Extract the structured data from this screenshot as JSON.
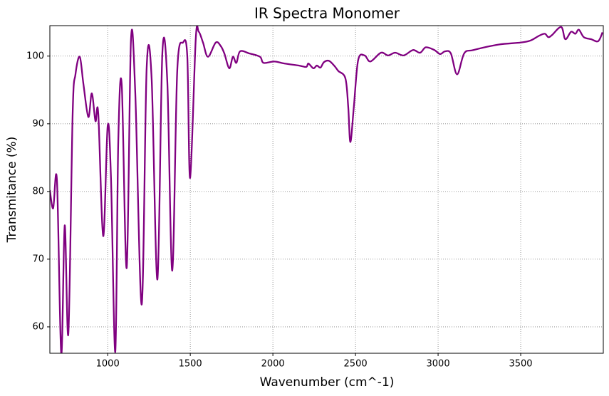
{
  "chart_data": {
    "type": "line",
    "title": "IR Spectra Monomer",
    "x_label": "Wavenumber (cm^-1)",
    "y_label": "Transmitance (%)",
    "x": [
      650,
      670,
      693,
      719,
      740,
      762,
      788,
      805,
      831,
      853,
      883,
      904,
      926,
      943,
      973,
      1000,
      1020,
      1046,
      1064,
      1085,
      1115,
      1141,
      1167,
      1206,
      1236,
      1266,
      1301,
      1331,
      1361,
      1391,
      1421,
      1456,
      1482,
      1499,
      1533,
      1551,
      1577,
      1607,
      1654,
      1684,
      1706,
      1736,
      1758,
      1779,
      1801,
      1857,
      1922,
      1943,
      2008,
      2072,
      2159,
      2202,
      2215,
      2245,
      2266,
      2288,
      2309,
      2340,
      2374,
      2396,
      2439,
      2456,
      2469,
      2490,
      2516,
      2555,
      2590,
      2654,
      2697,
      2740,
      2792,
      2848,
      2891,
      2926,
      2977,
      3012,
      3042,
      3077,
      3115,
      3158,
      3214,
      3365,
      3499,
      3559,
      3611,
      3646,
      3667,
      3689,
      3745,
      3770,
      3805,
      3831,
      3852,
      3882,
      3926,
      3969,
      3995
    ],
    "series": [
      {
        "name": "IR Spectra Monomer",
        "color": "#800080",
        "values": [
          80.2,
          77.5,
          81.6,
          56,
          75,
          59,
          91.5,
          97.3,
          99.9,
          95.9,
          91,
          94.5,
          90.4,
          91.5,
          73.4,
          89.7,
          82,
          56.3,
          87.3,
          95.8,
          68.7,
          102.4,
          94.6,
          63.3,
          98.3,
          96.7,
          67,
          100.5,
          96.2,
          68.3,
          97.8,
          102,
          99.9,
          82,
          102.5,
          103.6,
          102,
          99.9,
          102,
          101.5,
          100.4,
          98.2,
          99.9,
          99,
          100.7,
          100.4,
          99.9,
          99,
          99.2,
          98.9,
          98.6,
          98.4,
          98.9,
          98.2,
          98.6,
          98.3,
          99.1,
          99.3,
          98.5,
          97.8,
          96.7,
          92.5,
          87.3,
          92.5,
          99.4,
          100.1,
          99.2,
          100.5,
          100.1,
          100.5,
          100.1,
          100.9,
          100.5,
          101.3,
          100.9,
          100.3,
          100.7,
          100.4,
          97.3,
          100.4,
          100.9,
          101.7,
          102,
          102.3,
          103,
          103.3,
          102.8,
          103.1,
          104.3,
          102.5,
          103.6,
          103.3,
          103.9,
          102.8,
          102.5,
          102.2,
          103.5
        ]
      }
    ],
    "xlim": [
      650,
      4000
    ],
    "ylim": [
      56.1,
      104.5
    ],
    "xticks": [
      1000,
      1500,
      2000,
      2500,
      3000,
      3500
    ],
    "yticks": [
      60,
      70,
      80,
      90,
      100
    ],
    "grid": true
  }
}
